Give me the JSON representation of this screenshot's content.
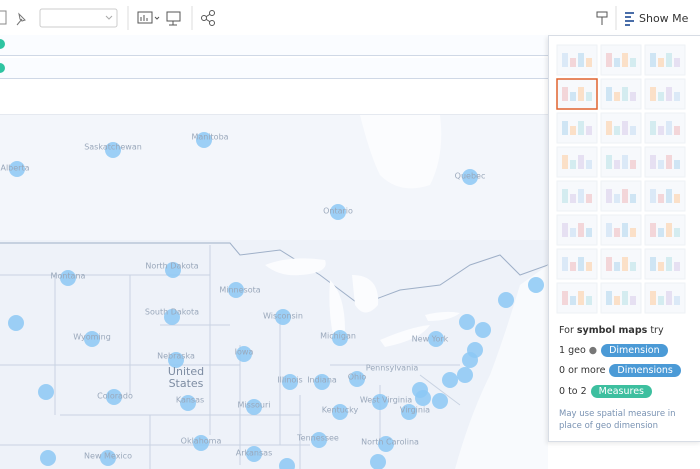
{
  "toolbar": {
    "show_me": "Show Me"
  },
  "map": {
    "labels": [
      "Saskatchewan",
      "Manitoba",
      "Alberta",
      "Quebec",
      "Ontario",
      "Montana",
      "North Dakota",
      "South Dakota",
      "Minnesota",
      "Wisconsin",
      "Michigan",
      "Wyoming",
      "Nebraska",
      "Iowa",
      "United States",
      "Colorado",
      "Kansas",
      "Missouri",
      "Illinois",
      "Indiana",
      "Ohio",
      "Pennsylvania",
      "New York",
      "Kentucky",
      "West Virginia",
      "Virginia",
      "Tennessee",
      "North Carolina",
      "Oklahoma",
      "New Mexico",
      "Arkansas"
    ]
  },
  "show_me": {
    "hint": {
      "prefix": "For",
      "chart": "symbol maps",
      "suffix": "try"
    },
    "requirements": [
      {
        "amount": "1 geo",
        "field": "Dimension"
      },
      {
        "amount": "0 or more",
        "field": "Dimensions"
      },
      {
        "amount": "0 to 2",
        "field": "Measures"
      }
    ],
    "note": "May use spatial measure in place of geo dimension"
  }
}
